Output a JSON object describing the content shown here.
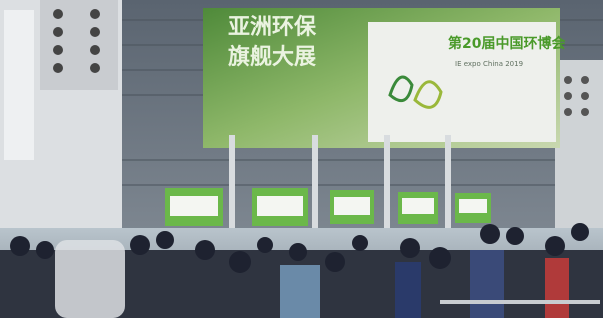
{
  "banner": {
    "title_line1": "亚洲环保",
    "title_line2": "旗舰大展",
    "event_name": "第20届中国环博会",
    "event_subtitle": "IE expo China 2019"
  }
}
